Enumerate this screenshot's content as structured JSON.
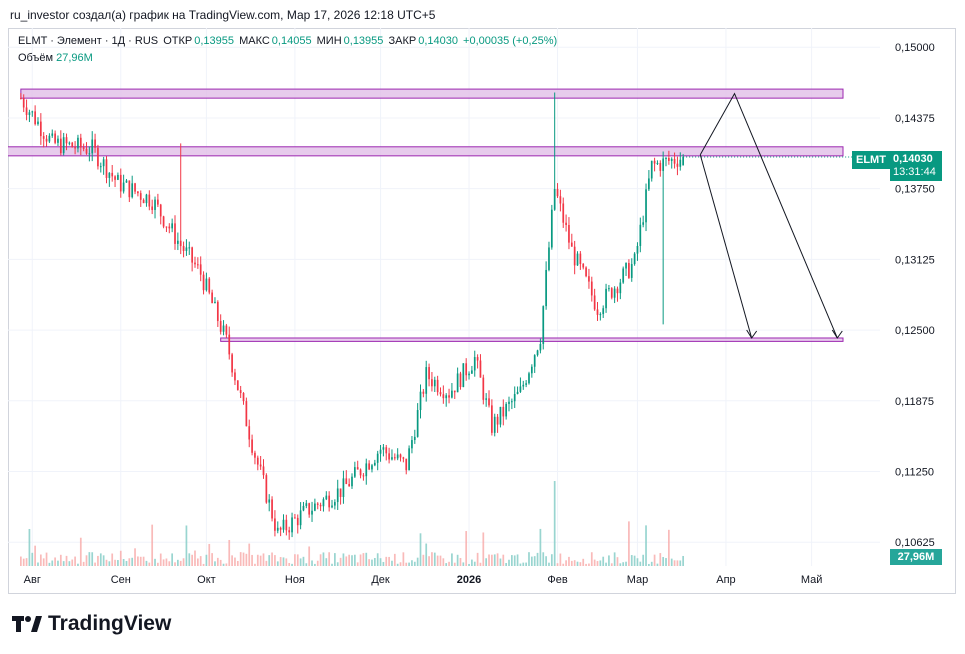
{
  "caption": "ru_investor создал(а) график на TradingView.com, Мар 17, 2026 12:18 UTC+5",
  "legend": {
    "symbol": "ELMT · Элемент · 1Д · RUS",
    "open_label": "ОТКР",
    "open": "0,13955",
    "high_label": "МАКС",
    "high": "0,14055",
    "low_label": "МИН",
    "low": "0,13955",
    "close_label": "ЗАКР",
    "close": "0,14030",
    "change": "+0,00035 (+0,25%)"
  },
  "volume_legend": {
    "label": "Объём",
    "value": "27,96M"
  },
  "price_tag": {
    "ticker": "ELMT",
    "price": "0,14030",
    "countdown": "13:31:44"
  },
  "volume_tag": "27,96M",
  "brand": "TradingView",
  "colors": {
    "up": "#089981",
    "down": "#f23645",
    "zone_fill": "#e1bee7",
    "zone_border": "#9c27b0",
    "grid": "#f0f3fa"
  },
  "chart_data": {
    "type": "candlestick",
    "title": "ELMT · Элемент · 1Д · RUS",
    "x_ticks": [
      "Авг",
      "Сен",
      "Окт",
      "Ноя",
      "Дек",
      "2026",
      "Фев",
      "Мар",
      "Апр",
      "Май"
    ],
    "y_ticks": [
      "0,15000",
      "0,14375",
      "0,13750",
      "0,13125",
      "0,12500",
      "0,11875",
      "0,11250",
      "0,10625"
    ],
    "ylim": [
      0.1045,
      0.1517
    ],
    "grid": true,
    "last_price": 0.1403,
    "close_path": [
      {
        "date": "2025-07-28",
        "close": 0.1455
      },
      {
        "date": "2025-08-08",
        "close": 0.1415
      },
      {
        "date": "2025-08-22",
        "close": 0.141
      },
      {
        "date": "2025-08-31",
        "close": 0.138
      },
      {
        "date": "2025-09-12",
        "close": 0.1365
      },
      {
        "date": "2025-09-22",
        "close": 0.1325
      },
      {
        "date": "2025-09-29",
        "close": 0.13
      },
      {
        "date": "2025-10-08",
        "close": 0.124
      },
      {
        "date": "2025-10-18",
        "close": 0.114
      },
      {
        "date": "2025-10-26",
        "close": 0.107
      },
      {
        "date": "2025-11-05",
        "close": 0.109
      },
      {
        "date": "2025-11-18",
        "close": 0.111
      },
      {
        "date": "2025-12-01",
        "close": 0.1145
      },
      {
        "date": "2025-12-10",
        "close": 0.113
      },
      {
        "date": "2025-12-17",
        "close": 0.121
      },
      {
        "date": "2025-12-25",
        "close": 0.1195
      },
      {
        "date": "2026-01-03",
        "close": 0.1225
      },
      {
        "date": "2026-01-09",
        "close": 0.1165
      },
      {
        "date": "2026-01-19",
        "close": 0.1195
      },
      {
        "date": "2026-01-26",
        "close": 0.1245
      },
      {
        "date": "2026-01-31",
        "close": 0.1375
      },
      {
        "date": "2026-02-06",
        "close": 0.132
      },
      {
        "date": "2026-02-15",
        "close": 0.127
      },
      {
        "date": "2026-02-28",
        "close": 0.131
      },
      {
        "date": "2026-03-06",
        "close": 0.1395
      },
      {
        "date": "2026-03-17",
        "close": 0.1403
      }
    ],
    "spikes": [
      {
        "date": "2026-01-31",
        "high": 0.146
      },
      {
        "date": "2026-03-10",
        "low": 0.1255
      },
      {
        "date": "2025-09-22",
        "high": 0.1415
      }
    ],
    "zones": [
      {
        "name": "upper",
        "low": 0.1455,
        "high": 0.1463,
        "from": "2025-07-28",
        "to": "2026-05-12"
      },
      {
        "name": "middle",
        "low": 0.1404,
        "high": 0.1412,
        "from": "2025-07-20",
        "to": "2026-05-12"
      },
      {
        "name": "lower",
        "low": 0.124,
        "high": 0.1243,
        "from": "2025-10-06",
        "to": "2026-05-12"
      }
    ],
    "arrows": [
      {
        "from": {
          "date": "2026-03-23",
          "price": 0.1405
        },
        "to": {
          "date": "2026-04-10",
          "price": 0.1243
        }
      },
      {
        "from": {
          "date": "2026-03-23",
          "price": 0.1405
        },
        "via": {
          "date": "2026-04-04",
          "price": 0.1459
        },
        "to": {
          "date": "2026-05-10",
          "price": 0.1243
        }
      }
    ],
    "volume": {
      "max_label": "27,96M",
      "peak_date": "2026-01-31"
    }
  }
}
